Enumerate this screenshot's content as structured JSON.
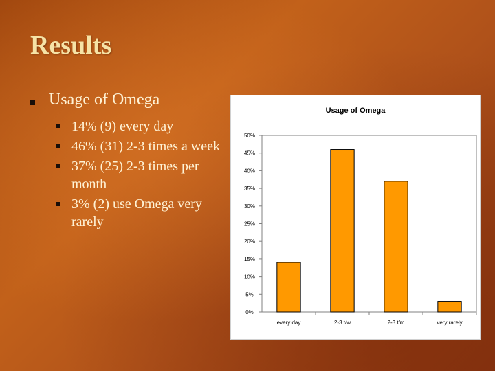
{
  "slide": {
    "title": "Results"
  },
  "bullets": {
    "main": "Usage of Omega",
    "items": [
      "14% (9) every day",
      "46% (31) 2-3 times a week",
      "37% (25) 2-3 times per month",
      "3% (2) use Omega very rarely"
    ]
  },
  "chart_data": {
    "type": "bar",
    "title": "Usage of Omega",
    "categories": [
      "every day",
      "2-3 t/w",
      "2-3 t/m",
      "very rarely"
    ],
    "values": [
      14,
      46,
      37,
      3
    ],
    "ylim": [
      0,
      50
    ],
    "yticks": [
      "0%",
      "5%",
      "10%",
      "15%",
      "20%",
      "25%",
      "30%",
      "35%",
      "40%",
      "45%",
      "50%"
    ],
    "xlabel": "",
    "ylabel": "",
    "grid": false,
    "bar_color": "#ff9900"
  }
}
